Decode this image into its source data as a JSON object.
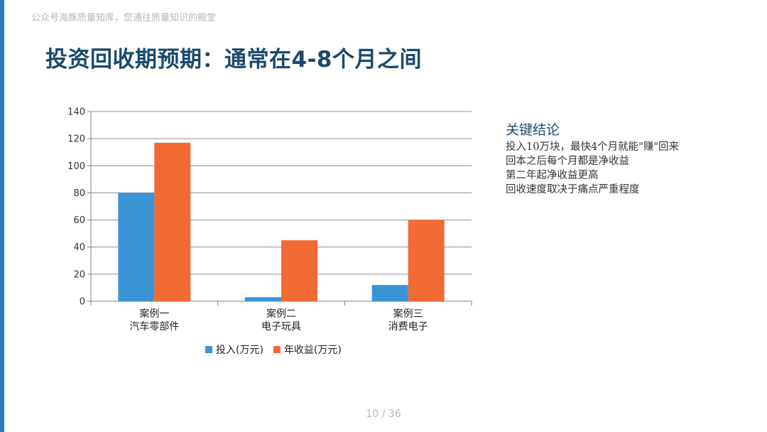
{
  "watermark": "公众号海豚质量知库，您通往质量知识的殿堂",
  "title": "投资回收期预期：通常在4-8个月之间",
  "conclusion": {
    "heading": "关键结论",
    "lines": [
      "投入10万块，最快4个月就能\"赚\"回来",
      "回本之后每个月都是净收益",
      "第二年起净收益更高",
      "回收速度取决于痛点严重程度"
    ]
  },
  "page_number": "10 / 36",
  "colors": {
    "accent": "#2b7bbf",
    "title": "#1c4a6b",
    "invest": "#3a95d6",
    "revenue": "#f26a34"
  },
  "chart_data": {
    "type": "bar",
    "categories": [
      [
        "案例一",
        "汽车零部件"
      ],
      [
        "案例二",
        "电子玩具"
      ],
      [
        "案例三",
        "消费电子"
      ]
    ],
    "series": [
      {
        "name": "投入(万元)",
        "values": [
          80,
          3,
          12
        ],
        "color": "#3a95d6"
      },
      {
        "name": "年收益(万元)",
        "values": [
          117,
          45,
          60
        ],
        "color": "#f26a34"
      }
    ],
    "ylim": [
      0,
      140
    ],
    "yticks": [
      0,
      20,
      40,
      60,
      80,
      100,
      120,
      140
    ],
    "grid": true,
    "legend": "bottom"
  }
}
